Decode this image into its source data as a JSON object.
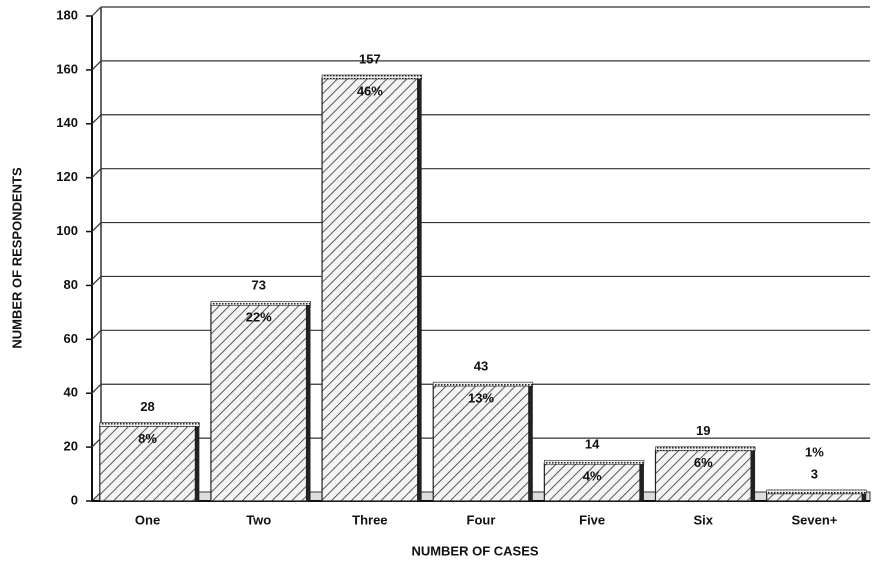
{
  "chart_data": {
    "type": "bar",
    "x_label": "NUMBER OF CASES",
    "y_label": "NUMBER OF RESPONDENTS",
    "categories": [
      "One",
      "Two",
      "Three",
      "Four",
      "Five",
      "Six",
      "Seven+"
    ],
    "values": [
      28,
      73,
      157,
      43,
      14,
      19,
      3
    ],
    "percent_labels": [
      "8%",
      "22%",
      "46%",
      "13%",
      "4%",
      "6%",
      "1%"
    ],
    "color": "#222222",
    "ylim": [
      0,
      180
    ],
    "yticks": [
      0,
      20,
      40,
      60,
      80,
      100,
      120,
      140,
      160,
      180
    ],
    "grid": true
  }
}
